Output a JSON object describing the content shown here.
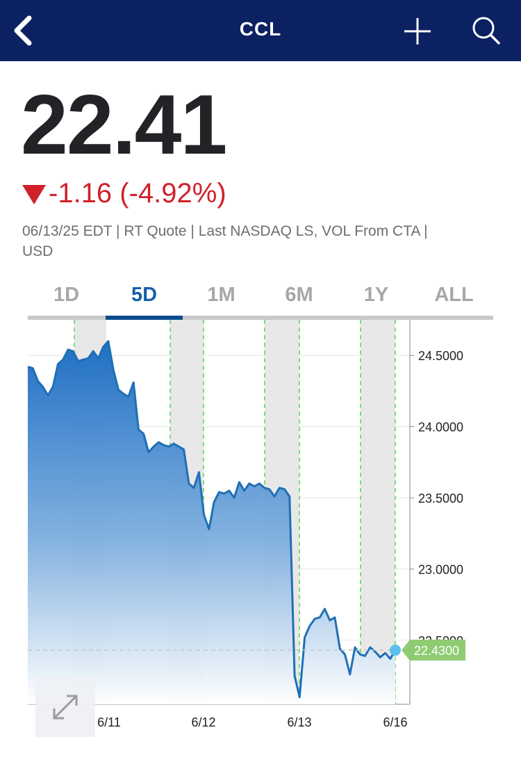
{
  "nav": {
    "title": "CCL",
    "back_icon": "chevron-left-icon",
    "add_icon": "plus-icon",
    "search_icon": "search-icon",
    "background_color": "#0b2162"
  },
  "quote": {
    "price": "22.41",
    "change": "-1.16",
    "change_percent": "(-4.92%)",
    "direction_icon": "triangle-down-icon",
    "change_color": "#d0212b",
    "meta_line1": "06/13/25 EDT | RT Quote | Last NASDAQ LS, VOL From CTA |",
    "meta_line2": "USD"
  },
  "tabs": [
    {
      "label": "1D",
      "active": false
    },
    {
      "label": "5D",
      "active": true
    },
    {
      "label": "1M",
      "active": false
    },
    {
      "label": "6M",
      "active": false
    },
    {
      "label": "1Y",
      "active": false
    },
    {
      "label": "ALL",
      "active": false
    }
  ],
  "chart_data": {
    "type": "area",
    "ylim": [
      22.05,
      24.75
    ],
    "y_ticks": [
      "24.5000",
      "24.0000",
      "23.5000",
      "23.0000",
      "22.5000"
    ],
    "y_tick_values": [
      24.5,
      24.0,
      23.5,
      23.0,
      22.5
    ],
    "x_ticks": [
      "6/11",
      "6/12",
      "6/13",
      "6/16"
    ],
    "last_value": 22.43,
    "last_label": "22.4300",
    "line_color": "#1f6fb5",
    "grid": true,
    "series": [
      {
        "values": [
          24.42,
          24.41,
          24.32,
          24.28,
          24.22,
          24.28,
          24.44,
          24.47,
          24.54,
          24.53,
          24.46,
          24.47,
          24.48,
          24.53,
          24.48,
          24.56,
          24.6,
          24.4,
          24.26,
          24.23,
          24.21,
          24.31,
          23.98,
          23.95,
          23.82,
          23.86,
          23.89,
          23.87,
          23.86,
          23.88,
          23.86,
          23.84,
          23.6,
          23.57,
          23.68,
          23.38,
          23.28,
          23.47,
          23.54,
          23.53,
          23.55,
          23.5,
          23.61,
          23.55,
          23.6,
          23.58,
          23.6,
          23.57,
          23.56,
          23.51,
          23.57,
          23.56,
          23.51,
          22.25,
          22.1,
          22.52,
          22.6,
          22.65,
          22.66,
          22.72,
          22.64,
          22.66,
          22.44,
          22.4,
          22.26,
          22.45,
          22.4,
          22.39,
          22.45,
          22.42,
          22.38,
          22.41,
          22.37,
          22.43
        ]
      }
    ],
    "session_dividers": [
      "6/11",
      "6/12",
      "6/13",
      "6/16"
    ],
    "extended_hours_shading": true
  },
  "expand_icon": "expand-arrows-icon"
}
